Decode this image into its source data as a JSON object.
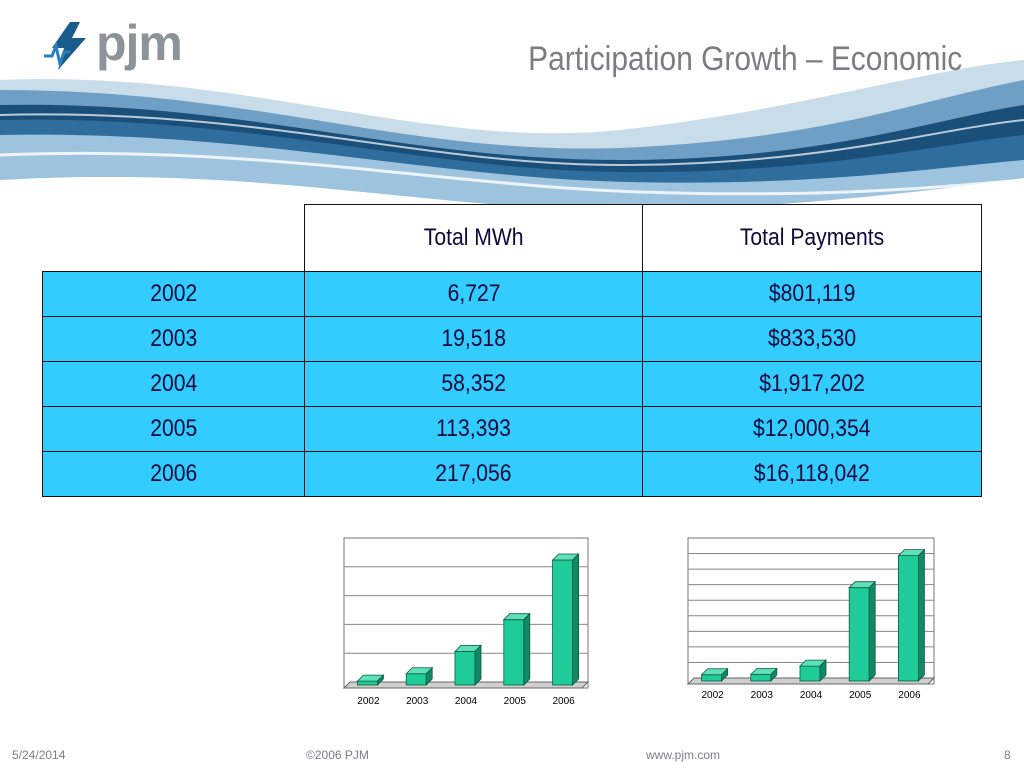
{
  "header": {
    "logo_text": "pjm",
    "title": "Participation Growth – Economic"
  },
  "table": {
    "columns": [
      "",
      "Total MWh",
      "Total Payments"
    ],
    "rows": [
      [
        "2002",
        "6,727",
        "$801,119"
      ],
      [
        "2003",
        "19,518",
        "$833,530"
      ],
      [
        "2004",
        "58,352",
        "$1,917,202"
      ],
      [
        "2005",
        "113,393",
        "$12,000,354"
      ],
      [
        "2006",
        "217,056",
        "$16,118,042"
      ]
    ]
  },
  "chart_data": [
    {
      "type": "bar",
      "categories": [
        "2002",
        "2003",
        "2004",
        "2005",
        "2006"
      ],
      "values": [
        6727,
        19518,
        58352,
        113393,
        217056
      ],
      "ylim": [
        0,
        250000
      ],
      "grid": true,
      "color": "#1fcc99"
    },
    {
      "type": "bar",
      "categories": [
        "2002",
        "2003",
        "2004",
        "2005",
        "2006"
      ],
      "values": [
        801119,
        833530,
        1917202,
        12000354,
        16118042
      ],
      "ylim": [
        0,
        18000000
      ],
      "grid": true,
      "color": "#1fcc99"
    }
  ],
  "footer": {
    "date": "5/24/2014",
    "copyright": "©2006 PJM",
    "url": "www.pjm.com",
    "page": "8"
  }
}
